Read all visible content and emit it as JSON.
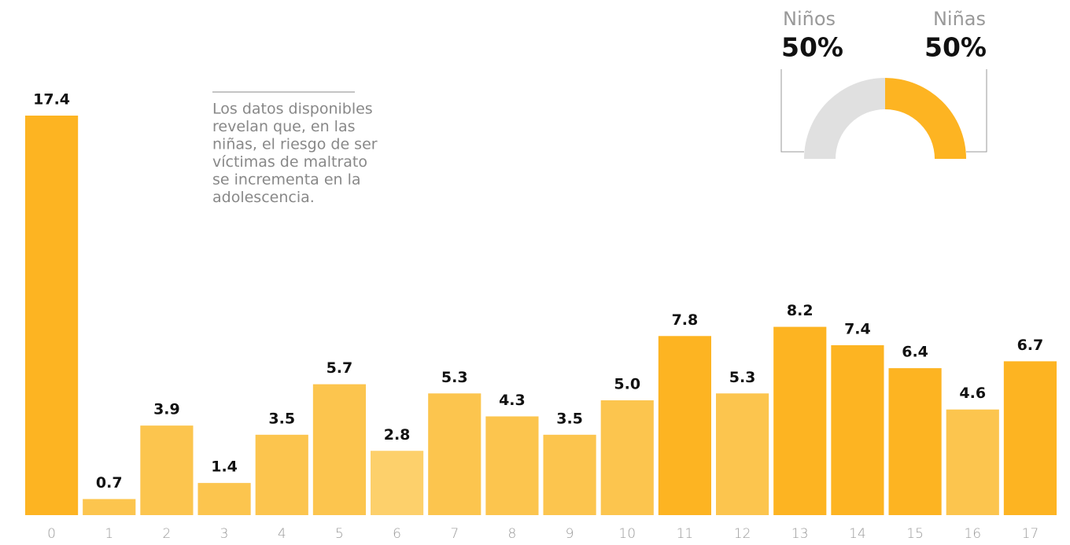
{
  "chart_data": [
    {
      "type": "bar",
      "categories": [
        "0",
        "1",
        "2",
        "3",
        "4",
        "5",
        "6",
        "7",
        "8",
        "9",
        "10",
        "11",
        "12",
        "13",
        "14",
        "15",
        "16",
        "17"
      ],
      "values": [
        17.4,
        0.7,
        3.9,
        1.4,
        3.5,
        5.7,
        2.8,
        5.3,
        4.3,
        3.5,
        5.0,
        7.8,
        5.3,
        8.2,
        7.4,
        6.4,
        4.6,
        6.7
      ],
      "value_labels": [
        "17.4",
        "0.7",
        "3.9",
        "1.4",
        "3.5",
        "5.7",
        "2.8",
        "5.3",
        "4.3",
        "3.5",
        "5.0",
        "7.8",
        "5.3",
        "8.2",
        "7.4",
        "6.4",
        "4.6",
        "6.7"
      ],
      "colors": [
        "#fdb422",
        "#fcc54e",
        "#fcc54e",
        "#fcc54e",
        "#fcc54e",
        "#fcc54e",
        "#fdd06b",
        "#fcc54e",
        "#fcc54e",
        "#fcc54e",
        "#fcc54e",
        "#fdb422",
        "#fcc54e",
        "#fdb422",
        "#fdb422",
        "#fdb422",
        "#fcc54e",
        "#fdb422"
      ],
      "ylim": [
        0,
        17.4
      ],
      "annotation": [
        "Los datos disponibles",
        "revelan que, en las",
        "niñas, el riesgo de ser",
        "víctimas de maltrato",
        "se incrementa en la",
        "adolescencia."
      ]
    },
    {
      "type": "pie",
      "categories": [
        "Niños",
        "Niñas"
      ],
      "values": [
        50,
        50
      ],
      "value_labels": [
        "50%",
        "50%"
      ],
      "colors": [
        "#e0e0e0",
        "#fdb422"
      ]
    }
  ]
}
